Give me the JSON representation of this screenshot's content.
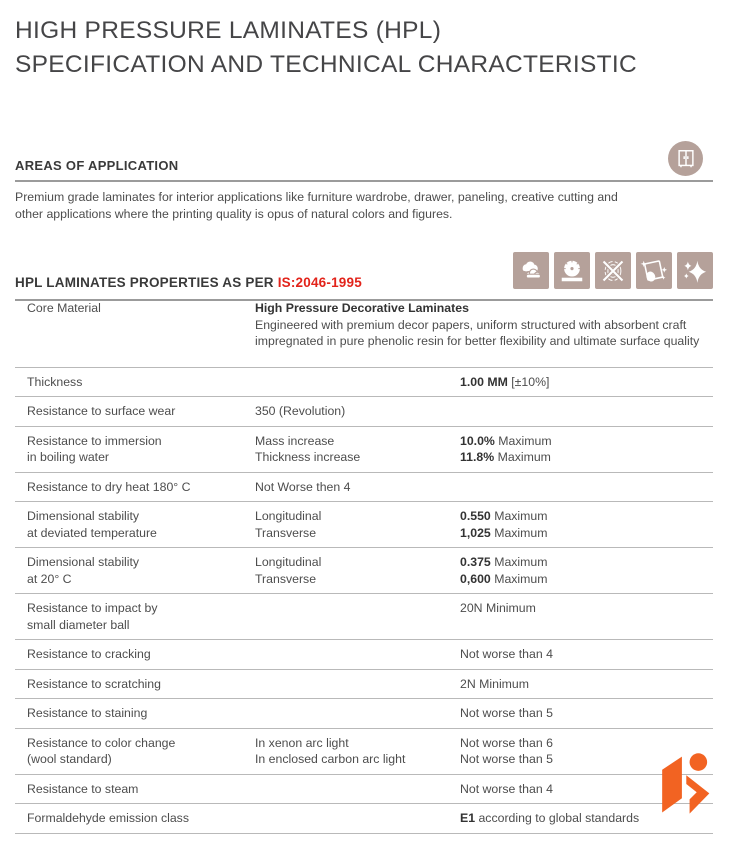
{
  "title": {
    "line1": "HIGH PRESSURE LAMINATES (HPL)",
    "line2": "SPECIFICATION AND TECHNICAL CHARACTERISTIC"
  },
  "areas": {
    "heading": "AREAS OF APPLICATION",
    "body": "Premium grade laminates for interior applications like furniture wardrobe, drawer, paneling, creative cutting and other applications where the printing quality is opus of natural colors and figures.",
    "badge_icon": "wardrobe-icon"
  },
  "properties": {
    "heading_prefix": "HPL LAMINATES PROPERTIES AS PER ",
    "heading_standard": "IS:2046-1995",
    "icons": [
      "clouds-icon",
      "circular-saw-icon",
      "no-fingerprint-icon",
      "wipe-clean-icon",
      "sparkle-icon"
    ]
  },
  "colors": {
    "accent_red": "#e2231a",
    "icon_tan": "#b5a19a",
    "logo_orange": "#f26322",
    "text_dark": "#3a3a3a"
  },
  "table": {
    "rows": [
      {
        "c1": [
          "Core Material"
        ],
        "c2": [
          {
            "b": "High Pressure Decorative Laminates"
          },
          {
            "t": "Engineered with premium decor papers, uniform structured with absorbent craft"
          },
          {
            "t": "impregnated in pure phenolic resin for better flexibility and ultimate surface quality"
          }
        ],
        "c3": []
      },
      {
        "c1": [
          "Thickness"
        ],
        "c2": [],
        "c3": [
          {
            "b": "1.00 MM",
            "t": "  [±10%]"
          }
        ]
      },
      {
        "c1": [
          "Resistance to surface wear"
        ],
        "c2": [
          {
            "t": "350 (Revolution)"
          }
        ],
        "c3": []
      },
      {
        "c1": [
          "Resistance to immersion",
          "in boiling water"
        ],
        "c2": [
          {
            "t": "Mass increase"
          },
          {
            "t": "Thickness increase"
          }
        ],
        "c3": [
          {
            "b": "10.0%",
            "t": " Maximum"
          },
          {
            "b": "11.8%",
            "t": " Maximum"
          }
        ]
      },
      {
        "c1": [
          "Resistance to dry heat 180° C"
        ],
        "c2": [
          {
            "t": "Not Worse then 4"
          }
        ],
        "c3": []
      },
      {
        "c1": [
          "Dimensional stability",
          "at deviated temperature"
        ],
        "c2": [
          {
            "t": "Longitudinal"
          },
          {
            "t": "Transverse"
          }
        ],
        "c3": [
          {
            "b": "0.550",
            "t": " Maximum"
          },
          {
            "b": "1,025",
            "t": " Maximum"
          }
        ]
      },
      {
        "c1": [
          "Dimensional stability",
          "at 20° C"
        ],
        "c2": [
          {
            "t": "Longitudinal"
          },
          {
            "t": "Transverse"
          }
        ],
        "c3": [
          {
            "b": "0.375",
            "t": " Maximum"
          },
          {
            "b": "0,600",
            "t": " Maximum"
          }
        ]
      },
      {
        "c1": [
          "Resistance to impact by",
          "small diameter ball"
        ],
        "c2": [],
        "c3": [
          {
            "t": "20N Minimum"
          }
        ]
      },
      {
        "c1": [
          "Resistance to cracking"
        ],
        "c2": [],
        "c3": [
          {
            "t": "Not worse than 4"
          }
        ]
      },
      {
        "c1": [
          "Resistance to scratching"
        ],
        "c2": [],
        "c3": [
          {
            "t": "2N Minimum"
          }
        ]
      },
      {
        "c1": [
          "Resistance to staining"
        ],
        "c2": [],
        "c3": [
          {
            "t": "Not worse than 5"
          }
        ]
      },
      {
        "c1": [
          "Resistance to color change",
          "(wool standard)"
        ],
        "c2": [
          {
            "t": "In xenon arc light"
          },
          {
            "t": "In enclosed carbon arc light"
          }
        ],
        "c3": [
          {
            "t": "Not worse than 6"
          },
          {
            "t": "Not worse than 5"
          }
        ]
      },
      {
        "c1": [
          "Resistance to steam"
        ],
        "c2": [],
        "c3": [
          {
            "t": "Not worse than 4"
          }
        ]
      },
      {
        "c1": [
          "Formaldehyde emission class"
        ],
        "c2": [],
        "c3": [
          {
            "b": "E1",
            "t": "  according to global standards"
          }
        ]
      }
    ]
  }
}
